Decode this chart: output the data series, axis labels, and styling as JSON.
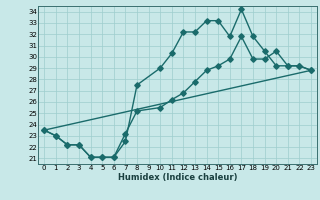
{
  "title": "",
  "xlabel": "Humidex (Indice chaleur)",
  "background_color": "#c8e8e8",
  "grid_color": "#9ecece",
  "line_color": "#1a6b6b",
  "xlim": [
    -0.5,
    23.5
  ],
  "ylim": [
    20.5,
    34.5
  ],
  "xticks": [
    0,
    1,
    2,
    3,
    4,
    5,
    6,
    7,
    8,
    9,
    10,
    11,
    12,
    13,
    14,
    15,
    16,
    17,
    18,
    19,
    20,
    21,
    22,
    23
  ],
  "yticks": [
    21,
    22,
    23,
    24,
    25,
    26,
    27,
    28,
    29,
    30,
    31,
    32,
    33,
    34
  ],
  "line1_x": [
    0,
    1,
    2,
    3,
    4,
    5,
    6,
    7,
    8,
    10,
    11,
    12,
    13,
    14,
    15,
    16,
    17,
    18,
    19,
    20,
    21,
    22,
    23
  ],
  "line1_y": [
    23.5,
    23.0,
    22.2,
    22.2,
    21.1,
    21.1,
    21.1,
    22.5,
    27.5,
    29.0,
    30.3,
    32.2,
    32.2,
    33.2,
    33.2,
    31.8,
    34.2,
    31.8,
    30.5,
    29.2,
    29.2,
    29.2,
    28.8
  ],
  "line2_x": [
    0,
    1,
    2,
    3,
    4,
    5,
    6,
    7,
    8,
    10,
    11,
    12,
    13,
    14,
    15,
    16,
    17,
    18,
    19,
    20,
    21,
    22,
    23
  ],
  "line2_y": [
    23.5,
    23.0,
    22.2,
    22.2,
    21.1,
    21.1,
    21.1,
    23.2,
    25.2,
    25.5,
    26.2,
    26.8,
    27.8,
    28.8,
    29.2,
    29.8,
    31.8,
    29.8,
    29.8,
    30.5,
    29.2,
    29.2,
    28.8
  ],
  "line3_x": [
    0,
    23
  ],
  "line3_y": [
    23.5,
    28.8
  ],
  "markersize": 2.8,
  "linewidth": 1.0
}
